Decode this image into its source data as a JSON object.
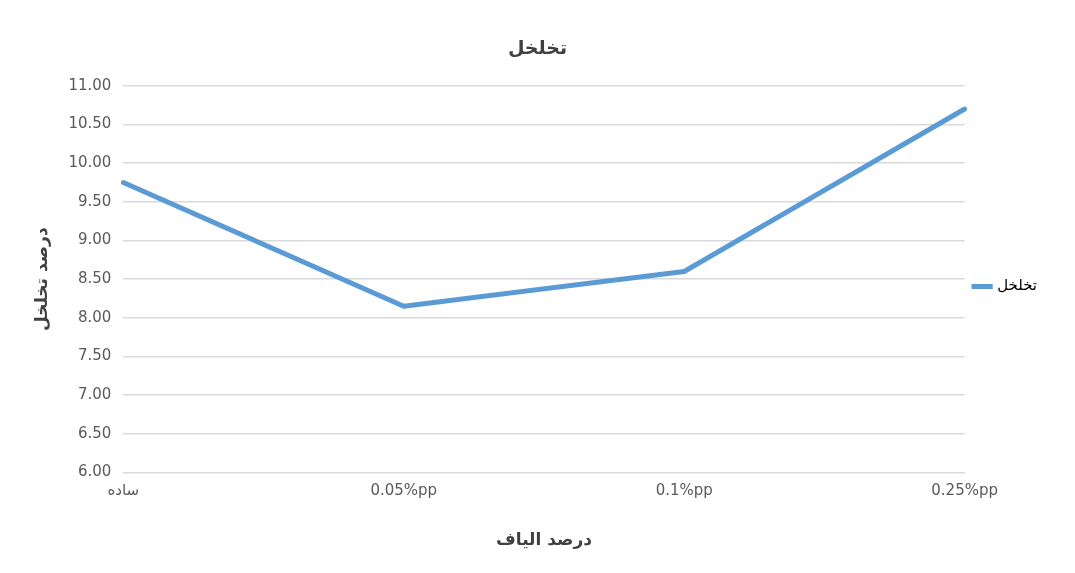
{
  "chart_data": {
    "type": "line",
    "title": "تخلخل",
    "xlabel": "درصد الیاف",
    "ylabel": "درصد تخلخل",
    "categories": [
      "ساده",
      "0.05%pp",
      "0.1%pp",
      "0.25%pp"
    ],
    "series": [
      {
        "name": "تخلخل",
        "color": "#5b9bd5",
        "values": [
          9.75,
          8.15,
          8.6,
          10.7
        ]
      }
    ],
    "ylim": [
      6,
      11
    ],
    "yticks": [
      {
        "value": 6,
        "label": "6.00"
      },
      {
        "value": 6.5,
        "label": "6.50"
      },
      {
        "value": 7,
        "label": "7.00"
      },
      {
        "value": 7.5,
        "label": "7.50"
      },
      {
        "value": 8,
        "label": "8.00"
      },
      {
        "value": 8.5,
        "label": "8.50"
      },
      {
        "value": 9,
        "label": "9.00"
      },
      {
        "value": 9.5,
        "label": "9.50"
      },
      {
        "value": 10,
        "label": "10.00"
      },
      {
        "value": 10.5,
        "label": "10.50"
      },
      {
        "value": 11,
        "label": "11.00"
      }
    ],
    "grid": "y",
    "legend": "right",
    "marker": "none",
    "line_style": "solid"
  }
}
